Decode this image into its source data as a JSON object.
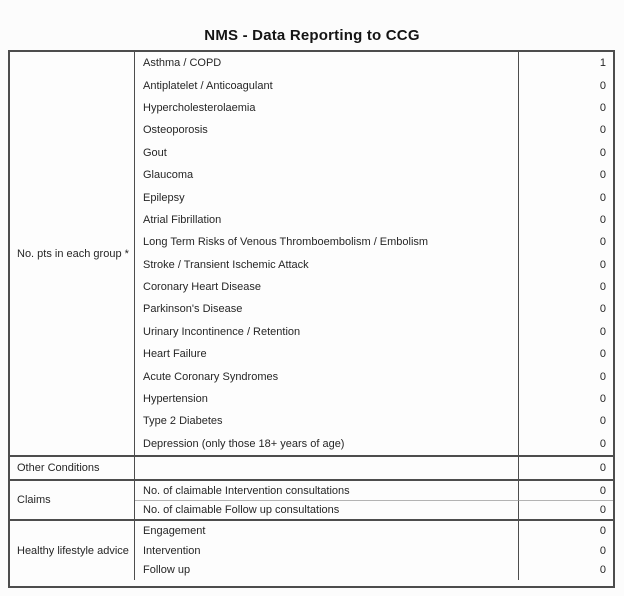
{
  "title": "NMS - Data Reporting to CCG",
  "table": {
    "value_column_values_note": "right-aligned counts",
    "sections": [
      {
        "label": "No. pts in each group *",
        "rows": [
          {
            "label": "Asthma / COPD",
            "value": "1"
          },
          {
            "label": "Antiplatelet / Anticoagulant",
            "value": "0"
          },
          {
            "label": "Hypercholesterolaemia",
            "value": "0"
          },
          {
            "label": "Osteoporosis",
            "value": "0"
          },
          {
            "label": "Gout",
            "value": "0"
          },
          {
            "label": "Glaucoma",
            "value": "0"
          },
          {
            "label": "Epilepsy",
            "value": "0"
          },
          {
            "label": "Atrial Fibrillation",
            "value": "0"
          },
          {
            "label": "Long Term Risks of Venous Thromboembolism / Embolism",
            "value": "0"
          },
          {
            "label": "Stroke / Transient Ischemic Attack",
            "value": "0"
          },
          {
            "label": "Coronary Heart Disease",
            "value": "0"
          },
          {
            "label": "Parkinson's Disease",
            "value": "0"
          },
          {
            "label": "Urinary Incontinence / Retention",
            "value": "0"
          },
          {
            "label": "Heart Failure",
            "value": "0"
          },
          {
            "label": "Acute Coronary Syndromes",
            "value": "0"
          },
          {
            "label": "Hypertension",
            "value": "0"
          },
          {
            "label": "Type 2 Diabetes",
            "value": "0"
          },
          {
            "label": "Depression (only those 18+ years of age)",
            "value": "0"
          }
        ]
      },
      {
        "label": "Other Conditions",
        "rows": [
          {
            "label": "",
            "value": "0"
          }
        ]
      },
      {
        "label": "Claims",
        "rows": [
          {
            "label": "No. of claimable Intervention consultations",
            "value": "0"
          },
          {
            "label": "No. of claimable Follow up consultations",
            "value": "0"
          }
        ]
      },
      {
        "label": "Healthy lifestyle advice",
        "rows": [
          {
            "label": "Engagement",
            "value": "0"
          },
          {
            "label": "Intervention",
            "value": "0"
          },
          {
            "label": "Follow up",
            "value": "0"
          }
        ]
      }
    ]
  }
}
